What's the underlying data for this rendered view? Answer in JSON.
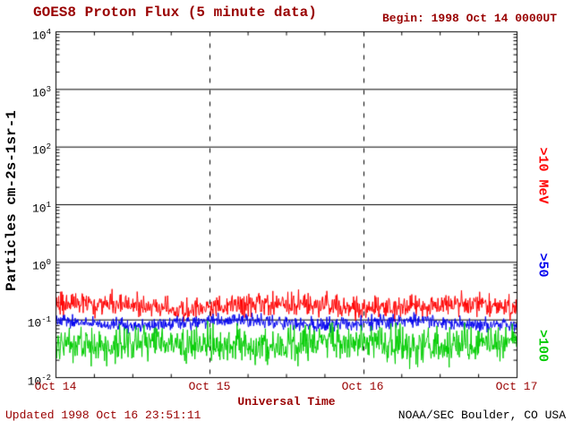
{
  "header": {
    "title": "GOES8 Proton Flux (5 minute data)",
    "begin": "Begin: 1998 Oct 14 0000UT"
  },
  "footer": {
    "updated": "Updated 1998 Oct 16 23:51:11",
    "credit": "NOAA/SEC Boulder, CO USA"
  },
  "colors": {
    "annotation_text": "#990000",
    "axis": "#000000",
    "background": "#ffffff"
  },
  "chart_data": {
    "type": "line",
    "title": "GOES8 Proton Flux (5 minute data)",
    "xlabel": "Universal Time",
    "ylabel": "Particles cm-2s-1sr-1",
    "x_tick_labels": [
      "Oct 14",
      "Oct 15",
      "Oct 16",
      "Oct 17"
    ],
    "y_tick_exponents": [
      4,
      3,
      2,
      1,
      0,
      -1,
      -2
    ],
    "ylim_log10": [
      -2,
      4
    ],
    "x_days": 3,
    "points_per_day": 288,
    "grid": {
      "horizontal": "solid",
      "vertical": "dashed"
    },
    "legend_position": "right-margin-rotated",
    "seed": 1998,
    "series": [
      {
        "name": ">10 MeV",
        "color": "#ff0000",
        "log10_mean": -0.76,
        "log10_scale": 0.2,
        "typical_range": [
          0.1,
          0.35
        ]
      },
      {
        "name": ">50",
        "color": "#0000ee",
        "log10_mean": -1.05,
        "log10_scale": 0.12,
        "typical_range": [
          0.06,
          0.13
        ]
      },
      {
        "name": ">100",
        "color": "#00cc00",
        "log10_mean": -1.42,
        "log10_scale": 0.3,
        "typical_range": [
          0.014,
          0.09
        ]
      }
    ]
  }
}
